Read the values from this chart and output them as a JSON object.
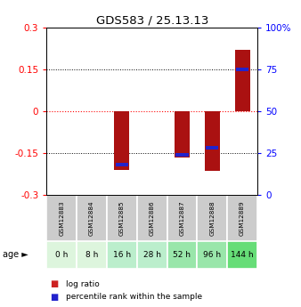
{
  "title": "GDS583 / 25.13.13",
  "categories": [
    "GSM12883",
    "GSM12884",
    "GSM12885",
    "GSM12886",
    "GSM12887",
    "GSM12888",
    "GSM12889"
  ],
  "age_labels": [
    "0 h",
    "8 h",
    "16 h",
    "28 h",
    "52 h",
    "96 h",
    "144 h"
  ],
  "log_ratio": [
    0.0,
    0.0,
    -0.21,
    0.0,
    -0.165,
    -0.215,
    0.22
  ],
  "percentile_rank": [
    null,
    null,
    -0.19,
    null,
    -0.155,
    -0.13,
    0.15
  ],
  "ylim": [
    -0.3,
    0.3
  ],
  "yticks_left": [
    -0.3,
    -0.15,
    0,
    0.15,
    0.3
  ],
  "yticks_right": [
    0,
    25,
    50,
    75,
    100
  ],
  "bar_color": "#aa1111",
  "marker_color": "#2222cc",
  "background_color": "#ffffff",
  "plot_bg": "#ffffff",
  "age_colors": [
    "#ddf5dd",
    "#ddf5dd",
    "#bbeecc",
    "#bbeecc",
    "#99e6aa",
    "#99e6aa",
    "#66dd77"
  ],
  "gsm_bg": "#cccccc",
  "bar_width": 0.5,
  "legend_square_red": "#cc2222",
  "legend_square_blue": "#2222cc"
}
